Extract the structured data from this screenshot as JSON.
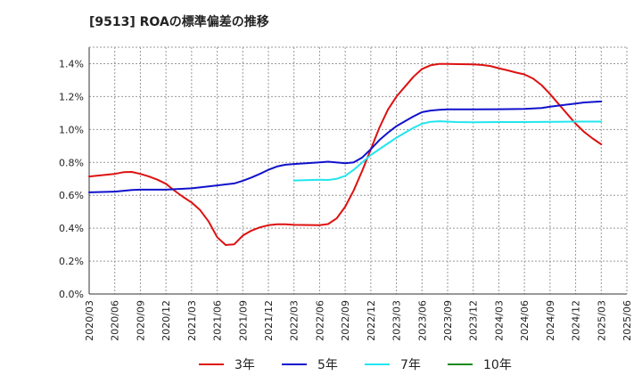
{
  "chart_data": {
    "type": "line",
    "title": "[9513]  ROAの標準偏差の推移",
    "xlabel": "",
    "ylabel": "",
    "ylim": [
      0,
      1.5
    ],
    "yticks": [
      "0.0%",
      "0.2%",
      "0.4%",
      "0.6%",
      "0.8%",
      "1.0%",
      "1.2%",
      "1.4%"
    ],
    "x": [
      "2020/03",
      "2020/06",
      "2020/09",
      "2020/12",
      "2021/03",
      "2021/06",
      "2021/09",
      "2021/12",
      "2022/03",
      "2022/06",
      "2022/09",
      "2022/12",
      "2023/03",
      "2023/06",
      "2023/09",
      "2023/12",
      "2024/03",
      "2024/06",
      "2024/09",
      "2024/12",
      "2025/03",
      "2025/06"
    ],
    "series": [
      {
        "name": "3年",
        "color": "#dd1111",
        "points": [
          [
            "2020/03",
            0.714
          ],
          [
            "2020/06",
            0.73
          ],
          [
            "2020/07",
            0.74
          ],
          [
            "2020/08",
            0.742
          ],
          [
            "2020/09",
            0.73
          ],
          [
            "2020/10",
            0.714
          ],
          [
            "2020/11",
            0.695
          ],
          [
            "2020/12",
            0.67
          ],
          [
            "2021/01",
            0.628
          ],
          [
            "2021/02",
            0.59
          ],
          [
            "2021/03",
            0.556
          ],
          [
            "2021/04",
            0.51
          ],
          [
            "2021/05",
            0.44
          ],
          [
            "2021/06",
            0.345
          ],
          [
            "2021/07",
            0.298
          ],
          [
            "2021/08",
            0.302
          ],
          [
            "2021/09",
            0.355
          ],
          [
            "2021/10",
            0.385
          ],
          [
            "2021/11",
            0.405
          ],
          [
            "2021/12",
            0.418
          ],
          [
            "2022/01",
            0.424
          ],
          [
            "2022/02",
            0.424
          ],
          [
            "2022/03",
            0.42
          ],
          [
            "2022/06",
            0.418
          ],
          [
            "2022/07",
            0.425
          ],
          [
            "2022/08",
            0.46
          ],
          [
            "2022/09",
            0.53
          ],
          [
            "2022/10",
            0.63
          ],
          [
            "2022/11",
            0.75
          ],
          [
            "2022/12",
            0.88
          ],
          [
            "2023/01",
            1.01
          ],
          [
            "2023/02",
            1.12
          ],
          [
            "2023/03",
            1.2
          ],
          [
            "2023/04",
            1.26
          ],
          [
            "2023/05",
            1.32
          ],
          [
            "2023/06",
            1.368
          ],
          [
            "2023/07",
            1.39
          ],
          [
            "2023/08",
            1.398
          ],
          [
            "2023/09",
            1.398
          ],
          [
            "2023/12",
            1.396
          ],
          [
            "2024/01",
            1.392
          ],
          [
            "2024/02",
            1.386
          ],
          [
            "2024/03",
            1.372
          ],
          [
            "2024/04",
            1.36
          ],
          [
            "2024/05",
            1.346
          ],
          [
            "2024/06",
            1.335
          ],
          [
            "2024/07",
            1.31
          ],
          [
            "2024/08",
            1.27
          ],
          [
            "2024/09",
            1.215
          ],
          [
            "2024/10",
            1.155
          ],
          [
            "2024/11",
            1.095
          ],
          [
            "2024/12",
            1.035
          ],
          [
            "2025/01",
            0.985
          ],
          [
            "2025/02",
            0.945
          ],
          [
            "2025/03",
            0.91
          ]
        ]
      },
      {
        "name": "5年",
        "color": "#1111cc",
        "points": [
          [
            "2020/03",
            0.618
          ],
          [
            "2020/06",
            0.622
          ],
          [
            "2020/08",
            0.632
          ],
          [
            "2020/09",
            0.634
          ],
          [
            "2020/12",
            0.634
          ],
          [
            "2021/03",
            0.642
          ],
          [
            "2021/06",
            0.66
          ],
          [
            "2021/08",
            0.672
          ],
          [
            "2021/09",
            0.688
          ],
          [
            "2021/10",
            0.708
          ],
          [
            "2021/11",
            0.73
          ],
          [
            "2021/12",
            0.755
          ],
          [
            "2022/01",
            0.775
          ],
          [
            "2022/02",
            0.786
          ],
          [
            "2022/03",
            0.79
          ],
          [
            "2022/06",
            0.8
          ],
          [
            "2022/07",
            0.804
          ],
          [
            "2022/09",
            0.795
          ],
          [
            "2022/10",
            0.8
          ],
          [
            "2022/11",
            0.83
          ],
          [
            "2022/12",
            0.88
          ],
          [
            "2023/01",
            0.935
          ],
          [
            "2023/02",
            0.98
          ],
          [
            "2023/03",
            1.02
          ],
          [
            "2023/04",
            1.05
          ],
          [
            "2023/05",
            1.08
          ],
          [
            "2023/06",
            1.105
          ],
          [
            "2023/07",
            1.115
          ],
          [
            "2023/08",
            1.12
          ],
          [
            "2023/09",
            1.122
          ],
          [
            "2023/12",
            1.122
          ],
          [
            "2024/03",
            1.123
          ],
          [
            "2024/06",
            1.125
          ],
          [
            "2024/08",
            1.13
          ],
          [
            "2024/09",
            1.138
          ],
          [
            "2024/12",
            1.158
          ],
          [
            "2025/01",
            1.164
          ],
          [
            "2025/03",
            1.17
          ]
        ]
      },
      {
        "name": "7年",
        "color": "#22e5ee",
        "points": [
          [
            "2022/03",
            0.69
          ],
          [
            "2022/06",
            0.695
          ],
          [
            "2022/07",
            0.693
          ],
          [
            "2022/08",
            0.7
          ],
          [
            "2022/09",
            0.718
          ],
          [
            "2022/10",
            0.755
          ],
          [
            "2022/11",
            0.8
          ],
          [
            "2022/12",
            0.845
          ],
          [
            "2023/01",
            0.88
          ],
          [
            "2023/02",
            0.915
          ],
          [
            "2023/03",
            0.95
          ],
          [
            "2023/04",
            0.98
          ],
          [
            "2023/05",
            1.01
          ],
          [
            "2023/06",
            1.035
          ],
          [
            "2023/07",
            1.047
          ],
          [
            "2023/08",
            1.05
          ],
          [
            "2023/09",
            1.048
          ],
          [
            "2023/10",
            1.045
          ],
          [
            "2023/12",
            1.044
          ],
          [
            "2024/03",
            1.045
          ],
          [
            "2024/06",
            1.045
          ],
          [
            "2024/09",
            1.047
          ],
          [
            "2024/12",
            1.048
          ],
          [
            "2025/03",
            1.048
          ]
        ]
      },
      {
        "name": "10年",
        "color": "#1a8a1a",
        "points": []
      }
    ],
    "grid": true,
    "legend_position": "bottom"
  }
}
